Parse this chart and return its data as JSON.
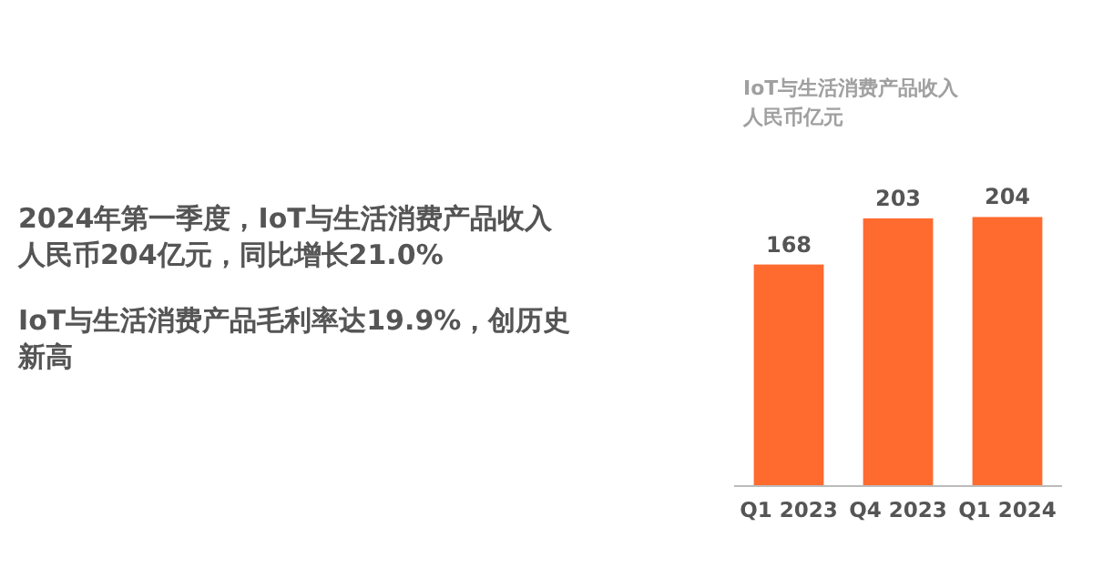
{
  "chart_data": {
    "type": "bar",
    "title": "IoT与生活消费产品收入",
    "subtitle": "人民币亿元",
    "categories": [
      "Q1 2023",
      "Q4 2023",
      "Q1 2024"
    ],
    "values": [
      168,
      203,
      204
    ],
    "color": "#ff6a2f",
    "data_labels": true,
    "tick_labels": "x",
    "annotations": [
      "2024年第一季度，IoT与生活消费产品收入人民币204亿元，同比增长21.0%",
      "IoT与生活消费产品毛利率达19.9%，创历史新高"
    ]
  }
}
